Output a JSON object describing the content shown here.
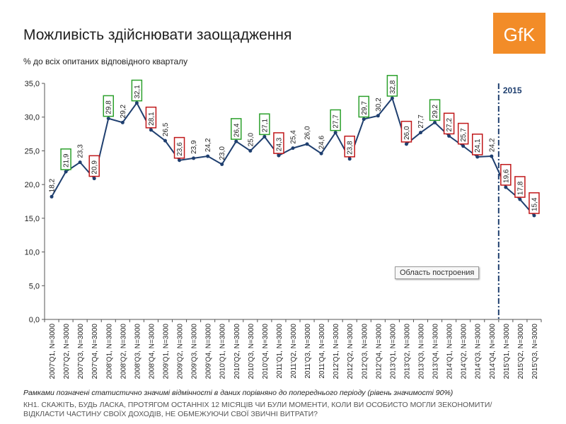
{
  "header": {
    "title": "Можливість здійснювати заощадження",
    "subtitle": "% до всіх опитаних відповідного кварталу",
    "logo_text": "GfK",
    "logo_color": "#f28c28"
  },
  "footer": {
    "note": "Рамками позначені статистично значимі відмінності в даних порівняно до попереднього періоду (рівень значимості 90%)",
    "question": "КН1. СКАЖІТЬ, БУДЬ ЛАСКА, ПРОТЯГОМ ОСТАННІХ 12 МІСЯЦІВ ЧИ БУЛИ МОМЕНТИ, КОЛИ ВИ ОСОБИСТО МОГЛИ ЗЕКОНОМИТИ/ ВІДКЛАСТИ ЧАСТИНУ СВОЇХ ДОХОДІВ, НЕ ОБМЕЖУЮЧИ СВОЇ ЗВИЧНІ ВИТРАТИ?"
  },
  "tooltip": {
    "text": "Область построения"
  },
  "chart_data": {
    "type": "line",
    "ylim": [
      0,
      35
    ],
    "yticks": [
      "0,0",
      "5,0",
      "10,0",
      "15,0",
      "20,0",
      "25,0",
      "30,0",
      "35,0"
    ],
    "grid": false,
    "categories": [
      "2007'Q1, N=3000",
      "2007'Q2, N=3000",
      "2007'Q3, N=3000",
      "2007'Q4, N=3000",
      "2008'Q1, N=3000",
      "2008'Q2, N=3000",
      "2008'Q3, N=3000",
      "2008'Q4, N=3000",
      "2009'Q1, N=3000",
      "2009'Q2, N=3000",
      "2009'Q3, N=3000",
      "2009'Q4, N=3000",
      "2010'Q1, N=3000",
      "2010'Q2, N=3000",
      "2010'Q3, N=3000",
      "2010'Q4, N=3000",
      "2011'Q1, N=3000",
      "2011'Q2, N=3000",
      "2011'Q3, N=3000",
      "2011'Q4, N=3000",
      "2012'Q1, N=3000",
      "2012'Q2, N=3000",
      "2012'Q3, N=3000",
      "2012'Q4, N=3000",
      "2013'Q1, N=3000",
      "2013'Q2, N=3000",
      "2013'Q3, N=3000",
      "2013'Q4, N=3000",
      "2014'Q1, N=3000",
      "2014'Q2, N=3000",
      "2014'Q3, N=3000",
      "2014'Q4, N=3000",
      "2015'Q1, N=3000",
      "2015'Q2, N=3000",
      "2015'Q3, N=3000"
    ],
    "values": [
      18.2,
      21.9,
      23.3,
      20.9,
      29.8,
      29.2,
      32.1,
      28.1,
      26.5,
      23.6,
      23.9,
      24.2,
      23.0,
      26.4,
      25.0,
      27.1,
      24.3,
      25.4,
      26.0,
      24.6,
      27.7,
      23.8,
      29.7,
      30.2,
      32.8,
      26.0,
      27.7,
      29.2,
      27.2,
      25.7,
      24.1,
      24.2,
      19.6,
      17.8,
      15.4
    ],
    "value_labels": [
      "18,2",
      "21,9",
      "23,3",
      "20,9",
      "29,8",
      "29,2",
      "32,1",
      "28,1",
      "26,5",
      "23,6",
      "23,9",
      "24,2",
      "23,0",
      "26,4",
      "25,0",
      "27,1",
      "24,3",
      "25,4",
      "26,0",
      "24,6",
      "27,7",
      "23,8",
      "29,7",
      "30,2",
      "32,8",
      "26,0",
      "27,7",
      "29,2",
      "27,2",
      "25,7",
      "24,1",
      "24,2",
      "19,6",
      "17,8",
      "15,4"
    ],
    "significance": [
      "",
      "up",
      "",
      "down",
      "up",
      "",
      "up",
      "down",
      "",
      "down",
      "",
      "",
      "",
      "up",
      "",
      "up",
      "down",
      "",
      "",
      "",
      "up",
      "down",
      "up",
      "",
      "up",
      "down",
      "",
      "up",
      "down",
      "down",
      "down",
      "",
      "down",
      "down",
      "down"
    ],
    "line_color": "#1f3f6f",
    "up_box_color": "#2ca02c",
    "down_box_color": "#c0181a",
    "marker_label": "2015",
    "marker_color": "#1f3f6f",
    "marker_after_index": 31
  }
}
